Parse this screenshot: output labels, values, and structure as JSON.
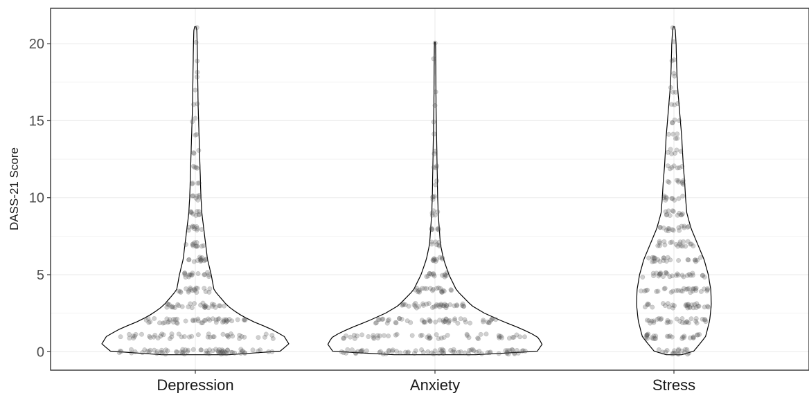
{
  "chart_data": {
    "type": "violin",
    "ylabel": "DASS-21 Score",
    "xlabel": "",
    "ylim": [
      -1.2,
      22.3
    ],
    "yticks": [
      "0",
      "5",
      "10",
      "15",
      "20"
    ],
    "grid": true,
    "categories": [
      "Depression",
      "Anxiety",
      "Stress"
    ],
    "violins": [
      {
        "name": "Depression",
        "max": 21,
        "profile": [
          [
            0,
            0.9
          ],
          [
            0.5,
            1.0
          ],
          [
            1,
            0.95
          ],
          [
            1.5,
            0.8
          ],
          [
            2,
            0.6
          ],
          [
            2.5,
            0.45
          ],
          [
            3,
            0.34
          ],
          [
            4,
            0.2
          ],
          [
            5,
            0.17
          ],
          [
            6,
            0.13
          ],
          [
            7,
            0.11
          ],
          [
            8,
            0.09
          ],
          [
            9,
            0.07
          ],
          [
            10,
            0.06
          ],
          [
            12,
            0.05
          ],
          [
            14,
            0.04
          ],
          [
            16,
            0.03
          ],
          [
            18,
            0.025
          ],
          [
            20,
            0.02
          ],
          [
            21,
            0.015
          ]
        ],
        "counts": [
          70,
          45,
          48,
          30,
          18,
          16,
          14,
          11,
          10,
          9,
          7,
          4,
          4,
          3,
          2,
          2,
          2,
          1,
          2,
          1,
          1,
          1
        ]
      },
      {
        "name": "Anxiety",
        "max": 20,
        "profile": [
          [
            0,
            0.95
          ],
          [
            0.5,
            1.0
          ],
          [
            1,
            0.95
          ],
          [
            1.5,
            0.8
          ],
          [
            2,
            0.62
          ],
          [
            2.5,
            0.46
          ],
          [
            3,
            0.34
          ],
          [
            4,
            0.2
          ],
          [
            5,
            0.13
          ],
          [
            6,
            0.08
          ],
          [
            7,
            0.05
          ],
          [
            8,
            0.04
          ],
          [
            9,
            0.03
          ],
          [
            10,
            0.025
          ],
          [
            12,
            0.02
          ],
          [
            14,
            0.015
          ],
          [
            16,
            0.01
          ],
          [
            18,
            0.008
          ],
          [
            20,
            0.006
          ]
        ],
        "counts": [
          75,
          50,
          50,
          36,
          22,
          14,
          10,
          7,
          6,
          5,
          4,
          2,
          3,
          2,
          1,
          1,
          1,
          1,
          0,
          1,
          1
        ]
      },
      {
        "name": "Stress",
        "max": 21,
        "profile": [
          [
            0,
            0.45
          ],
          [
            0.5,
            0.6
          ],
          [
            1,
            0.74
          ],
          [
            2,
            0.83
          ],
          [
            3,
            0.87
          ],
          [
            4,
            0.86
          ],
          [
            5,
            0.8
          ],
          [
            6,
            0.7
          ],
          [
            7,
            0.55
          ],
          [
            8,
            0.4
          ],
          [
            9,
            0.3
          ],
          [
            10,
            0.27
          ],
          [
            11,
            0.25
          ],
          [
            12,
            0.22
          ],
          [
            13,
            0.2
          ],
          [
            14,
            0.18
          ],
          [
            15,
            0.15
          ],
          [
            16,
            0.12
          ],
          [
            17,
            0.09
          ],
          [
            18,
            0.07
          ],
          [
            19,
            0.06
          ],
          [
            20,
            0.05
          ],
          [
            21,
            0.03
          ]
        ],
        "counts": [
          18,
          28,
          30,
          30,
          30,
          28,
          24,
          20,
          16,
          12,
          10,
          9,
          7,
          6,
          5,
          4,
          3,
          3,
          2,
          2,
          1,
          1
        ]
      }
    ],
    "point_color": "#555555",
    "line_color": "#000000",
    "panel_border": "#333333",
    "grid_color": "#ebebeb"
  }
}
